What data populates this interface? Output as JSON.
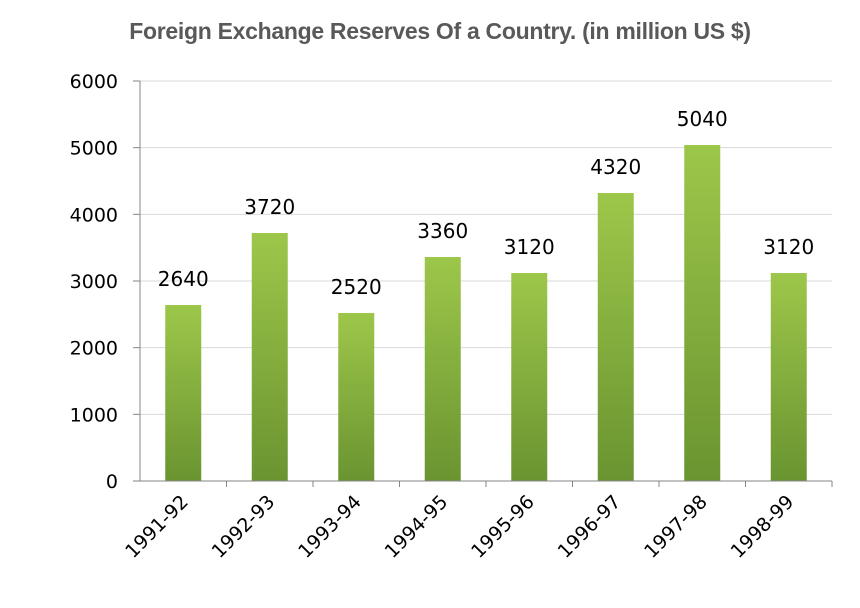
{
  "chart_data": {
    "type": "bar",
    "title": "Foreign Exchange Reserves Of a Country. (in million US $)",
    "xlabel": "",
    "ylabel": "",
    "categories": [
      "1991-92",
      "1992-93",
      "1993-94",
      "1994-95",
      "1995-96",
      "1996-97",
      "1997-98",
      "1998-99"
    ],
    "values": [
      2640,
      3720,
      2520,
      3360,
      3120,
      4320,
      5040,
      3120
    ],
    "data_labels": [
      "2640",
      "3720",
      "2520",
      "3360",
      "3120",
      "4320",
      "5040",
      "3120"
    ],
    "ylim": [
      0,
      6000
    ],
    "yticks": [
      "0",
      "1000",
      "2000",
      "3000",
      "4000",
      "5000",
      "6000"
    ],
    "grid": true,
    "legend": "none",
    "colors": {
      "bar_light": "#9dc74a",
      "bar_dark": "#6a9430",
      "grid": "#d9d9d9",
      "axis": "#868686",
      "title": "#595959"
    }
  }
}
